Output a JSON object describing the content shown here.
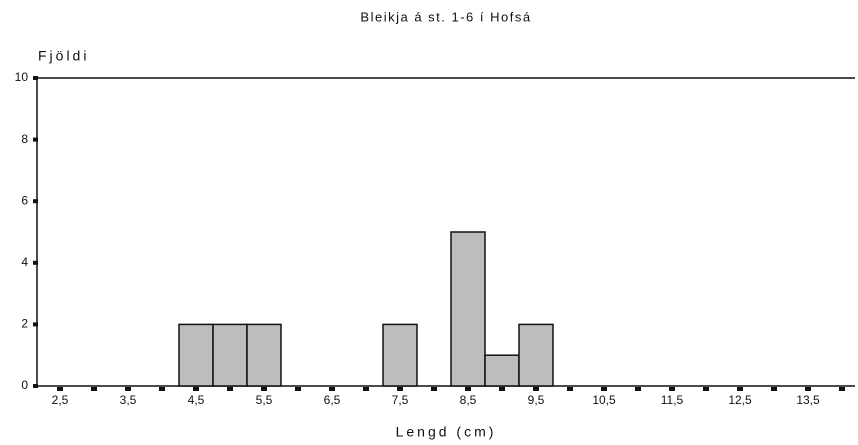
{
  "chart_data": {
    "type": "bar",
    "title": "Bleikja á st. 1-6 í Hofsá",
    "y_label": "Fjöldi",
    "x_label": "Lengd (cm)",
    "categories": [
      "2,5",
      null,
      "3,5",
      null,
      "4,5",
      null,
      "5,5",
      null,
      "6,5",
      null,
      "7,5",
      null,
      "8,5",
      null,
      "9,5",
      null,
      "10,5",
      null,
      "11,5",
      null,
      "12,5",
      null,
      "13,5",
      null
    ],
    "values": [
      0,
      0,
      0,
      0,
      2,
      2,
      2,
      0,
      0,
      0,
      2,
      0,
      5,
      1,
      2,
      0,
      0,
      0,
      0,
      0,
      0,
      0,
      0,
      0
    ],
    "color": "#bdbdbd",
    "ylim": [
      0,
      10
    ],
    "yticks": [
      0,
      2,
      4,
      6,
      8,
      10
    ]
  }
}
